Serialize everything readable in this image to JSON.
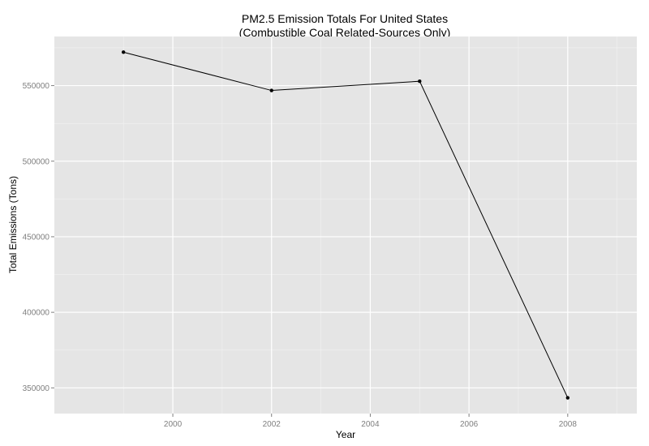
{
  "chart_data": {
    "type": "line",
    "title": "PM2.5 Emission Totals For United States",
    "subtitle": "(Combustible Coal Related-Sources Only)",
    "xlabel": "Year",
    "ylabel": "Total Emissions (Tons)",
    "x": [
      1999,
      2002,
      2005,
      2008
    ],
    "series": [
      {
        "values": [
          572126,
          546789,
          552881,
          343432
        ]
      }
    ],
    "xlim": [
      1997.6,
      2009.4
    ],
    "ylim": [
      333000,
      582500
    ],
    "xticks": [
      2000,
      2002,
      2004,
      2006,
      2008
    ],
    "xtick_labels": [
      "2000",
      "2002",
      "2004",
      "2006",
      "2008"
    ],
    "yticks": [
      350000,
      400000,
      450000,
      500000,
      550000
    ],
    "ytick_labels": [
      "350000",
      "400000",
      "450000",
      "500000",
      "550000"
    ],
    "grid": true,
    "legend": "none",
    "colors": {
      "panel_background": "#e5e5e5",
      "grid_major": "#ffffff",
      "grid_minor": "#f2f2f2",
      "line": "#000000",
      "point": "#000000",
      "tick_label": "#7f7f7f"
    }
  }
}
